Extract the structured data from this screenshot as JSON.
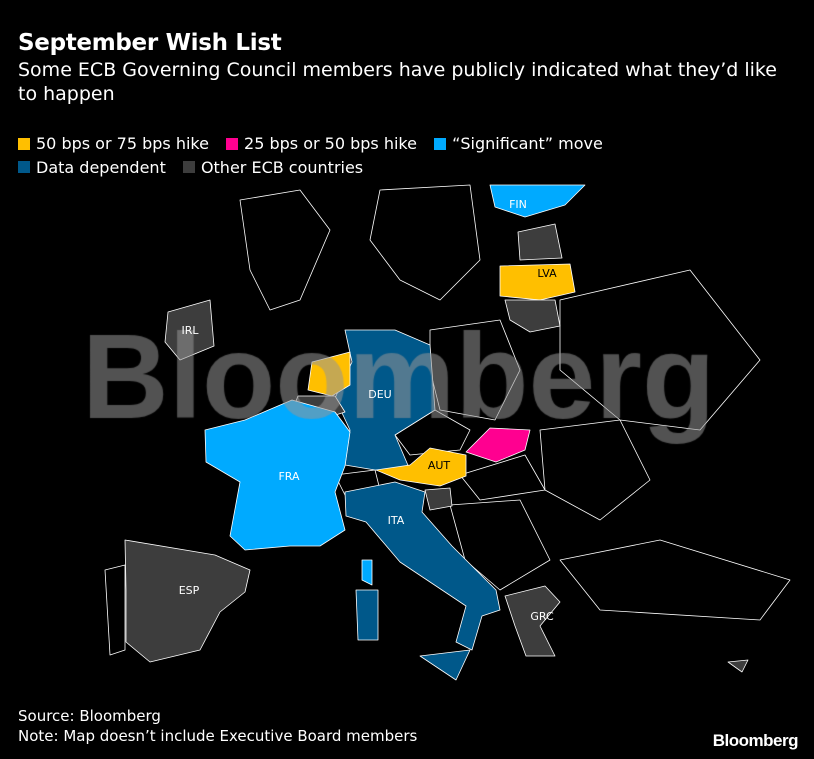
{
  "header": {
    "title": "September Wish List",
    "subtitle": "Some ECB Governing Council members have publicly indicated what they’d like to happen"
  },
  "legend": [
    {
      "label": "50 bps or 75 bps hike",
      "color": "#ffbf00"
    },
    {
      "label": "25 bps or 50 bps hike",
      "color": "#ff0090"
    },
    {
      "label": "“Significant” move",
      "color": "#00aaff"
    },
    {
      "label": "Data dependent",
      "color": "#00588a"
    },
    {
      "label": "Other ECB countries",
      "color": "#3d3d3d"
    }
  ],
  "map": {
    "countries": {
      "FIN": {
        "label": "FIN",
        "category": "“Significant” move"
      },
      "LVA": {
        "label": "LVA",
        "category": "50 bps or 75 bps hike"
      },
      "IRL": {
        "label": "IRL",
        "category": "Other ECB countries"
      },
      "DEU": {
        "label": "DEU",
        "category": "Data dependent"
      },
      "FRA": {
        "label": "FRA",
        "category": "“Significant” move"
      },
      "AUT": {
        "label": "AUT",
        "category": "50 bps or 75 bps hike"
      },
      "ITA": {
        "label": "ITA",
        "category": "Data dependent"
      },
      "ESP": {
        "label": "ESP",
        "category": "Other ECB countries"
      },
      "GRC": {
        "label": "GRC",
        "category": "Other ECB countries"
      },
      "NLD": {
        "category": "50 bps or 75 bps hike"
      },
      "SVK": {
        "category": "25 bps or 50 bps hike"
      }
    },
    "watermark": "Bloomberg"
  },
  "footer": {
    "source": "Source: Bloomberg",
    "note": "Note: Map doesn’t include Executive Board members",
    "logo": "Bloomberg"
  }
}
